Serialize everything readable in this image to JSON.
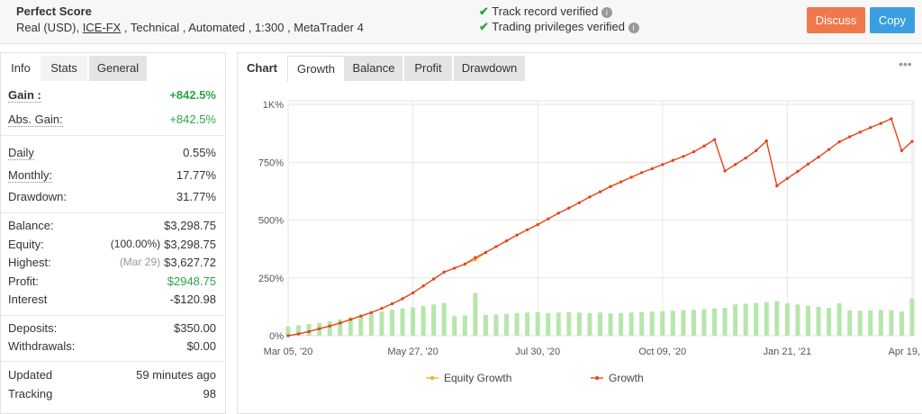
{
  "header": {
    "title": "Perfect Score",
    "subtitle": [
      "Real (USD), ",
      "ICE-FX",
      " , Technical , Automated , 1:300 , MetaTrader 4"
    ],
    "verified": [
      "Track record verified",
      "Trading privileges verified"
    ],
    "buttons": [
      "Discuss",
      "Copy"
    ]
  },
  "left_tabs": [
    "Info",
    "Stats",
    "General"
  ],
  "stats": [
    [
      {
        "label": "Gain :",
        "value": "+842.5%",
        "color": "#28a745"
      },
      {
        "label": "Abs. Gain:",
        "value": "+842.5%",
        "color": "#28a745"
      }
    ],
    [
      {
        "label": "Daily",
        "value": "0.55%"
      },
      {
        "label": "Monthly:",
        "value": "17.77%"
      },
      {
        "label": "Drawdown:",
        "value": "31.77%"
      }
    ],
    [
      {
        "label": "Balance:",
        "value": "$3,298.75"
      },
      {
        "label": "Equity:",
        "prefix": "(100.00%)",
        "value": "$3,298.75"
      },
      {
        "label": "Highest:",
        "prefix": "(Mar 29)",
        "value": "$3,627.72"
      },
      {
        "label": "Profit:",
        "value": "$2948.75",
        "color": "#28a745"
      },
      {
        "label": "Interest",
        "value": "-$120.98"
      }
    ],
    [
      {
        "label": "Deposits:",
        "value": "$350.00"
      },
      {
        "label": "Withdrawals:",
        "value": "$0.00"
      }
    ],
    [
      {
        "label": "Updated",
        "value": "59 minutes ago"
      },
      {
        "label": "Tracking",
        "value": "98"
      }
    ]
  ],
  "chart_tabs": [
    "Chart",
    "Growth",
    "Balance",
    "Profit",
    "Drawdown"
  ],
  "chart_data": {
    "type": "line",
    "categories": [
      "Mar 05, '20",
      null,
      null,
      null,
      null,
      null,
      null,
      null,
      null,
      null,
      null,
      null,
      "May 27, '20",
      null,
      null,
      null,
      null,
      null,
      null,
      null,
      null,
      null,
      null,
      null,
      "Jul 30, '20",
      null,
      null,
      null,
      null,
      null,
      null,
      null,
      null,
      null,
      null,
      null,
      "Oct 09, '20",
      null,
      null,
      null,
      null,
      null,
      null,
      null,
      null,
      null,
      null,
      null,
      "Jan 21, '21",
      null,
      null,
      null,
      null,
      null,
      null,
      null,
      null,
      null,
      null,
      null,
      "Apr 19, '21"
    ],
    "series": [
      {
        "type": "bar",
        "color": "#b5e6ab",
        "values": [
          40,
          45,
          50,
          55,
          62,
          70,
          80,
          88,
          95,
          105,
          112,
          118,
          122,
          128,
          135,
          142,
          85,
          88,
          185,
          90,
          92,
          95,
          98,
          100,
          102,
          98,
          100,
          102,
          100,
          98,
          100,
          96,
          98,
          100,
          102,
          104,
          106,
          108,
          110,
          112,
          115,
          118,
          120,
          135,
          138,
          142,
          145,
          150,
          140,
          135,
          130,
          125,
          120,
          140,
          110,
          108,
          110,
          112,
          110,
          105,
          160
        ]
      },
      {
        "name": "Equity Growth",
        "color": "#f5a623",
        "values": [
          0,
          8,
          18,
          30,
          42,
          55,
          70,
          85,
          100,
          118,
          138,
          160,
          185,
          215,
          245,
          275,
          292,
          310,
          328,
          360,
          385,
          410,
          435,
          458,
          480,
          505,
          530,
          552,
          575,
          600,
          622,
          645,
          665,
          685,
          705,
          722,
          740,
          758,
          775,
          795,
          820,
          848,
          712,
          740,
          768,
          800,
          842,
          648,
          680,
          710,
          742,
          772,
          805,
          838,
          860,
          880,
          900,
          918,
          938,
          800,
          840
        ]
      },
      {
        "name": "Growth",
        "color": "#e5401e",
        "values": [
          0,
          8,
          18,
          30,
          42,
          55,
          70,
          85,
          100,
          118,
          138,
          160,
          185,
          215,
          245,
          275,
          292,
          310,
          338,
          360,
          385,
          410,
          435,
          458,
          480,
          505,
          530,
          552,
          575,
          600,
          622,
          645,
          665,
          685,
          705,
          722,
          740,
          758,
          775,
          795,
          820,
          848,
          712,
          740,
          768,
          800,
          842,
          648,
          680,
          710,
          742,
          772,
          805,
          838,
          860,
          880,
          900,
          918,
          938,
          800,
          840
        ]
      }
    ],
    "ylim": [
      0,
      1000
    ],
    "yticks": [
      {
        "value": 0,
        "label": "0%"
      },
      {
        "value": 250,
        "label": "250%"
      },
      {
        "value": 500,
        "label": "500%"
      },
      {
        "value": 750,
        "label": "750%"
      },
      {
        "value": 1000,
        "label": "1K%"
      }
    ],
    "grid": true
  }
}
